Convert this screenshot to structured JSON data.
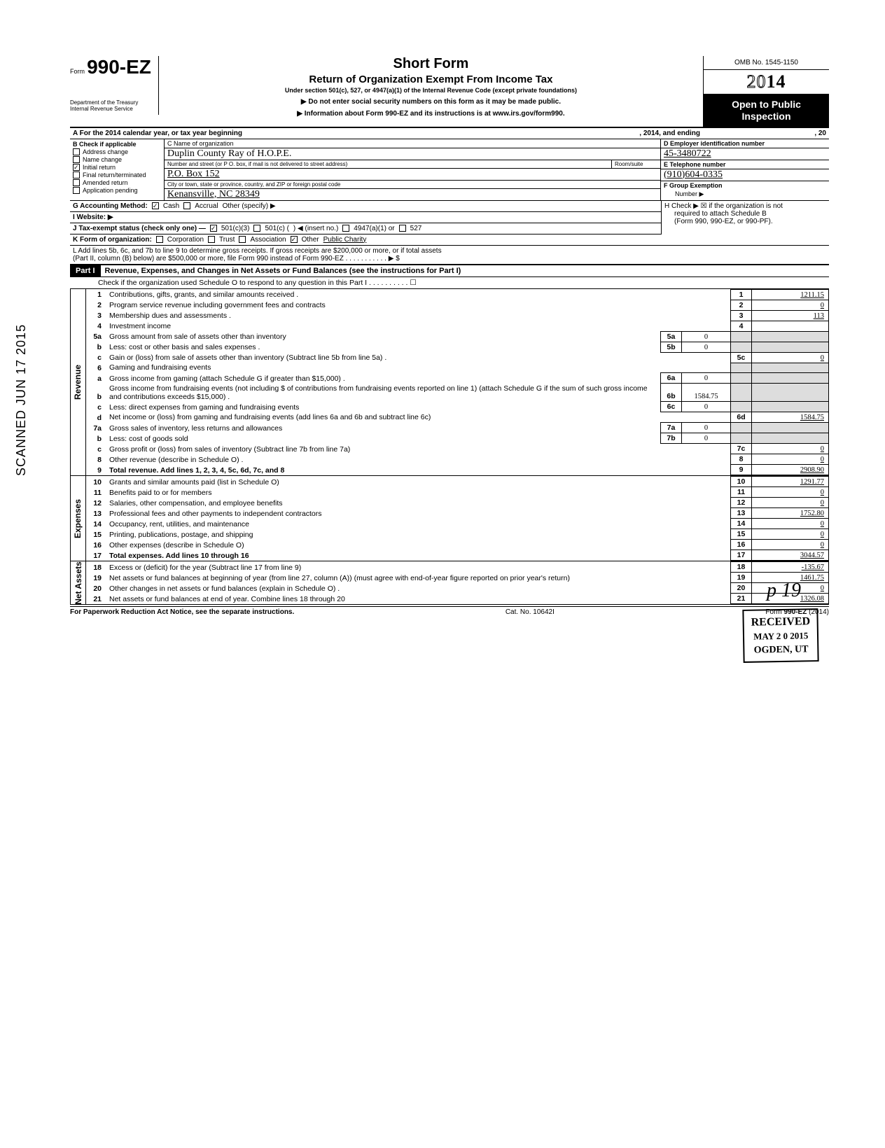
{
  "vertical_stamp": "SCANNED JUN 17 2015",
  "form": {
    "prefix": "Form",
    "number": "990-EZ",
    "title": "Short Form",
    "subtitle": "Return of Organization Exempt From Income Tax",
    "under": "Under section 501(c), 527, or 4947(a)(1) of the Internal Revenue Code (except private foundations)",
    "warn1": "▶ Do not enter social security numbers on this form as it may be made public.",
    "warn2": "▶ Information about Form 990-EZ and its instructions is at www.irs.gov/form990.",
    "omb": "OMB No. 1545-1150",
    "year_outline": "20",
    "year_bold": "14",
    "inspect1": "Open to Public",
    "inspect2": "Inspection",
    "dept1": "Department of the Treasury",
    "dept2": "Internal Revenue Service"
  },
  "lineA": {
    "left": "A  For the 2014 calendar year, or tax year beginning",
    "mid": ", 2014, and ending",
    "right": ", 20"
  },
  "B": {
    "header": "B  Check if applicable",
    "opts": [
      "Address change",
      "Name change",
      "Initial return",
      "Final return/terminated",
      "Amended return",
      "Application pending"
    ],
    "checked_idx": 2
  },
  "C": {
    "label": "C  Name of organization",
    "name": "Duplin County Ray of H.O.P.E.",
    "addr_label": "Number and street (or P O. box, if mail is not delivered to street address)",
    "room": "Room/suite",
    "addr": "P.O. Box 152",
    "city_label": "City or town, state or province, country, and ZIP or foreign postal code",
    "city": "Kenansville, NC 28349"
  },
  "D": {
    "label": "D Employer identification number",
    "val": "45-3480722"
  },
  "E": {
    "label": "E Telephone number",
    "val": "(910)604-0335"
  },
  "F": {
    "label": "F Group Exemption",
    "sub": "Number ▶"
  },
  "G": {
    "label": "G  Accounting Method:",
    "cash": "Cash",
    "accrual": "Accrual",
    "other": "Other (specify) ▶"
  },
  "H": {
    "text": "H  Check ▶ ☒ if the organization is not",
    "text2": "required to attach Schedule B",
    "text3": "(Form 990, 990-EZ, or 990-PF)."
  },
  "I": "I   Website: ▶",
  "J": {
    "label": "J  Tax-exempt status (check only one) —",
    "c3": "501(c)(3)",
    "c": "501(c) (",
    "ins": ") ◀ (insert no.)",
    "a1": "4947(a)(1) or",
    "s527": "527"
  },
  "K": {
    "label": "K  Form of organization:",
    "corp": "Corporation",
    "trust": "Trust",
    "assoc": "Association",
    "other": "Other",
    "other_val": "Public Charity"
  },
  "L": {
    "l1": "L  Add lines 5b, 6c, and 7b to line 9 to determine gross receipts. If gross receipts are $200,000 or more, or if total assets",
    "l2": "(Part II, column (B) below) are $500,000 or more, file Form 990 instead of Form 990-EZ .   .   .   .   .   .   .   .   .   .   .  ▶   $"
  },
  "part1": {
    "label": "Part I",
    "title": "Revenue, Expenses, and Changes in Net Assets or Fund Balances (see the instructions for Part I)",
    "check": "Check if the organization used Schedule O to respond to any question in this Part I  .   .   .   .   .   .   .   .   .   .   ☐"
  },
  "sections": {
    "revenue": "Revenue",
    "expenses": "Expenses",
    "netassets": "Net Assets"
  },
  "lines": [
    {
      "n": "1",
      "d": "Contributions, gifts, grants, and similar amounts received .",
      "box": "1",
      "v": "1211.15"
    },
    {
      "n": "2",
      "d": "Program service revenue including government fees and contracts",
      "box": "2",
      "v": "0"
    },
    {
      "n": "3",
      "d": "Membership dues and assessments .",
      "box": "3",
      "v": "113"
    },
    {
      "n": "4",
      "d": "Investment income",
      "box": "4",
      "v": ""
    },
    {
      "n": "5a",
      "d": "Gross amount from sale of assets other than inventory",
      "sub": "5a",
      "sv": "0"
    },
    {
      "n": "b",
      "d": "Less: cost or other basis and sales expenses .",
      "sub": "5b",
      "sv": "0"
    },
    {
      "n": "c",
      "d": "Gain or (loss) from sale of assets other than inventory (Subtract line 5b from line 5a) .",
      "box": "5c",
      "v": "0"
    },
    {
      "n": "6",
      "d": "Gaming and fundraising events"
    },
    {
      "n": "a",
      "d": "Gross income from gaming (attach Schedule G if greater than $15,000) .",
      "sub": "6a",
      "sv": "0"
    },
    {
      "n": "b",
      "d": "Gross income from fundraising events (not including  $                     of contributions from fundraising events reported on line 1) (attach Schedule G if the sum of such gross income and contributions exceeds $15,000) .",
      "sub": "6b",
      "sv": "1584.75"
    },
    {
      "n": "c",
      "d": "Less: direct expenses from gaming and fundraising events",
      "sub": "6c",
      "sv": "0"
    },
    {
      "n": "d",
      "d": "Net income or (loss) from gaming and fundraising events (add lines 6a and 6b and subtract line 6c)",
      "box": "6d",
      "v": "1584.75",
      "strike": true
    },
    {
      "n": "7a",
      "d": "Gross sales of inventory, less returns and allowances",
      "sub": "7a",
      "sv": "0"
    },
    {
      "n": "b",
      "d": "Less: cost of goods sold",
      "sub": "7b",
      "sv": "0"
    },
    {
      "n": "c",
      "d": "Gross profit or (loss) from sales of inventory (Subtract line 7b from line 7a)",
      "box": "7c",
      "v": "0"
    },
    {
      "n": "8",
      "d": "Other revenue (describe in Schedule O) .",
      "box": "8",
      "v": "0"
    },
    {
      "n": "9",
      "d": "Total revenue. Add lines 1, 2, 3, 4, 5c, 6d, 7c, and 8",
      "box": "9",
      "v": "2908.90",
      "bold": true
    },
    {
      "n": "10",
      "d": "Grants and similar amounts paid (list in Schedule O)",
      "box": "10",
      "v": "1291.77"
    },
    {
      "n": "11",
      "d": "Benefits paid to or for members",
      "box": "11",
      "v": "0"
    },
    {
      "n": "12",
      "d": "Salaries, other compensation, and employee benefits",
      "box": "12",
      "v": "0"
    },
    {
      "n": "13",
      "d": "Professional fees and other payments to independent contractors",
      "box": "13",
      "v": "1752.80"
    },
    {
      "n": "14",
      "d": "Occupancy, rent, utilities, and maintenance",
      "box": "14",
      "v": "0"
    },
    {
      "n": "15",
      "d": "Printing, publications, postage, and shipping",
      "box": "15",
      "v": "0"
    },
    {
      "n": "16",
      "d": "Other expenses (describe in Schedule O)",
      "box": "16",
      "v": "0"
    },
    {
      "n": "17",
      "d": "Total expenses. Add lines 10 through 16",
      "box": "17",
      "v": "3044.57",
      "bold": true
    },
    {
      "n": "18",
      "d": "Excess or (deficit) for the year (Subtract line 17 from line 9)",
      "box": "18",
      "v": "-135.67"
    },
    {
      "n": "19",
      "d": "Net assets or fund balances at beginning of year (from line 27, column (A)) (must agree with end-of-year figure reported on prior year's return)",
      "box": "19",
      "v": "1461.75"
    },
    {
      "n": "20",
      "d": "Other changes in net assets or fund balances (explain in Schedule O) .",
      "box": "20",
      "v": "0"
    },
    {
      "n": "21",
      "d": "Net assets or fund balances at end of year. Combine lines 18 through 20",
      "box": "21",
      "v": "1326.08"
    }
  ],
  "stamp": {
    "l1": "RECEIVED",
    "l2": "MAY 2 0 2015",
    "l3": "OGDEN, UT"
  },
  "footer": {
    "left": "For Paperwork Reduction Act Notice, see the separate instructions.",
    "mid": "Cat. No. 10642I",
    "right": "Form 990-EZ (2014)"
  },
  "page_num": "p   19"
}
